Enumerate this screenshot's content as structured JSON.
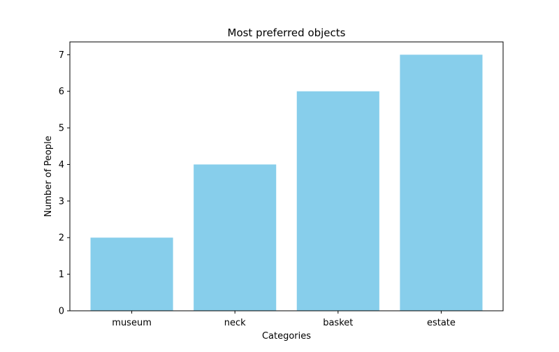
{
  "chart_data": {
    "type": "bar",
    "title": "Most preferred objects",
    "xlabel": "Categories",
    "ylabel": "Number of People",
    "categories": [
      "museum",
      "neck",
      "basket",
      "estate"
    ],
    "values": [
      2,
      4,
      6,
      7
    ],
    "ylim": [
      0,
      7.35
    ],
    "yticks": [
      "0",
      "1",
      "2",
      "3",
      "4",
      "5",
      "6",
      "7"
    ],
    "bar_color": "#87ceeb",
    "grid": false,
    "legend": "none"
  }
}
